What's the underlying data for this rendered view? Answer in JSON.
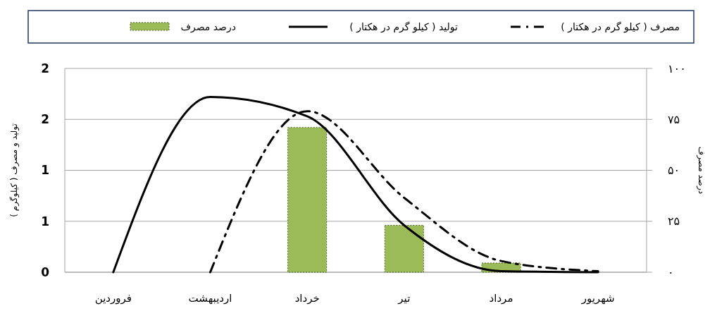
{
  "chart_data": {
    "type": "bar",
    "categories": [
      "فروردین",
      "اردیبهشت",
      "خرداد",
      "تیر",
      "مرداد",
      "شهریور"
    ],
    "series": [
      {
        "name": "درصد مصرف",
        "type": "bar",
        "axis": "y2",
        "color": "#9bbb59",
        "values": [
          null,
          null,
          71,
          23,
          4.5,
          null
        ]
      },
      {
        "name": "تولید ( کیلو گرم در هکتار )",
        "type": "line",
        "color": "#000000",
        "line_style": "solid",
        "values": [
          0,
          1.72,
          1.53,
          0.46,
          0.01,
          0
        ]
      },
      {
        "name": "مصرف ( کیلو گرم در هکتار )",
        "type": "line",
        "color": "#000000",
        "line_style": "dashdot",
        "values": [
          null,
          0,
          1.58,
          0.73,
          0.11,
          0.01
        ]
      }
    ],
    "ylabel": "تولید و مصرف ( کیلوگرم )",
    "y2label": "درصد مصرف",
    "ylim": [
      0,
      2
    ],
    "yticks": [
      0,
      {
        "value": 0.5,
        "label": "1"
      },
      1,
      {
        "value": 1.5,
        "label": "2"
      },
      2
    ],
    "y2lim": [
      0,
      100
    ],
    "y2ticks": [
      {
        "value": 0,
        "label": "۰"
      },
      {
        "value": 25,
        "label": "۲۵"
      },
      {
        "value": 50,
        "label": "۵۰"
      },
      {
        "value": 75,
        "label": "۷۵"
      },
      {
        "value": 100,
        "label": "۱۰۰"
      }
    ],
    "grid": "y",
    "legend": "top",
    "marker": "none"
  }
}
